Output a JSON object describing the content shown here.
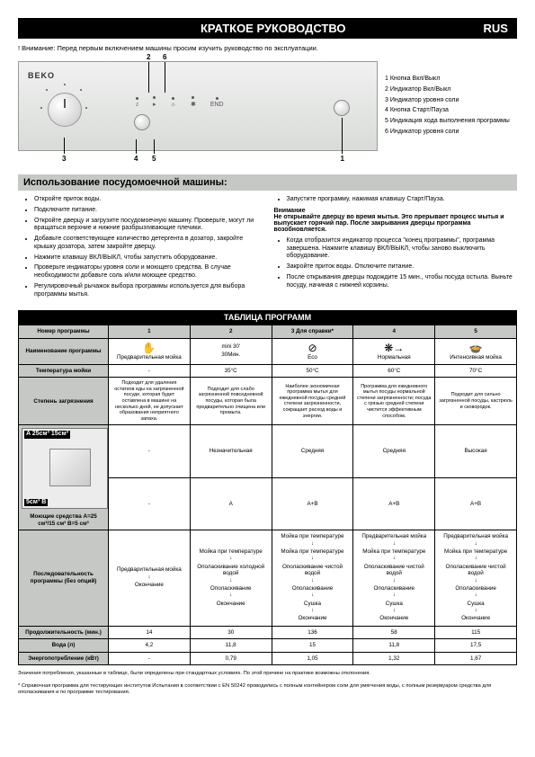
{
  "header": {
    "title": "КРАТКОЕ РУКОВОДСТВО",
    "lang": "RUS"
  },
  "warning": "! Внимание: Перед первым включением машины просим изучить руководство по эксплуатации.",
  "panel": {
    "logo": "BEKO",
    "callouts": [
      "2",
      "6",
      "3",
      "4",
      "5",
      "1"
    ],
    "legend": [
      "1  Кнопка Вкл/Выкл",
      "2  Индикатор Вкл/Выкл",
      "3  Индикатор уровня соли",
      "4  Кнопка Старт/Пауза",
      "5  Индикация хода выполнения программы",
      "6  Индикатор уровня соли"
    ]
  },
  "usage": {
    "title": "Использование посудомоечной машины:",
    "left": [
      "Откройте приток воды.",
      "Подключите питание.",
      "Откройте дверцу и загрузите посудомоечную машину. Проверьте, могут ли вращаться верхние и нижние разбрызгивающие плечики.",
      "Добавьте соответствующее количество детергента в дозатор, закройте крышку дозатора, затем закройте дверцу.",
      "Нажмите клавишу ВКЛ/ВЫКЛ, чтобы запустить оборудование.",
      "Проверьте индикаторы уровня соли и моющего средства. В случае необходимости добавьте соль и/или моющее средство.",
      "Регулировочный рычажок выбора программы используется для выбора программы мытья."
    ],
    "right_intro": "Запустите программу, нажимая клавишу Старт/Пауза.",
    "right_bold_title": "Внимание",
    "right_bold": "Не открывайте дверцу во время мытья. Это прерывает процесс мытья и выпускает горячий пар. После закрывания дверцы программа возобновляется.",
    "right_rest": [
      "Когда отобразится индикатор процесса \"конец программы\", программа завершена. Нажмите клавишу ВКЛ/ВЫКЛ, чтобы заново выключить оборудование.",
      "Закройте приток воды. Отключите питание.",
      "После открывания дверцы подождите 15 мин., чтобы посуда остыла. Выньте посуду, начиная с нижней корзины."
    ]
  },
  "table": {
    "title": "ТАБЛИЦА ПРОГРАММ",
    "headers": {
      "prog_num": "Номер программы",
      "c1": "1",
      "c2": "2",
      "c3": "3 Для справки*",
      "c4": "4",
      "c5": "5"
    },
    "name_row": {
      "label": "Наименование программы",
      "c1": "Предварительная мойка",
      "c2": "30Мин.",
      "c3": "Eco",
      "c4": "Нормальная",
      "c5": "Интенсивная мойка",
      "c2_top": "mini 30'"
    },
    "temp_row": {
      "label": "Температура мойки",
      "c1": "-",
      "c2": "35°C",
      "c3": "50°C",
      "c4": "60°C",
      "c5": "70°C"
    },
    "soil_row": {
      "label": "Степень загрязнения",
      "c1": "Подходит для удаления остатков еды на загрязненной посуде, которая будет оставлена в машине на несколько дней, не допускает образования неприятного запаха.",
      "c2": "Подходит для слабо загрязненной повседневной посуды, которая была предварительно очищена или промыта.",
      "c3": "Наиболее экономичная программа мытья для ежедневной посуды средней степени загрязненности, сокращает расход воды и энергии.",
      "c4": "Программа для ежедневного мытья посуды нормальной степени загрязненности; посуда с грязью средней степени чистится эффективным способом.",
      "c5": "Подходит для сильно загрязненной посуды, кастрюль и сковородок."
    },
    "det_row": {
      "label": "Моющие средства A=25 см³/15 см³ B=5 см³",
      "box_A": "A  25см³  15см³",
      "box_B": "5см³  B",
      "c1": "-",
      "c2": "Незначительная",
      "c3": "Средняя",
      "c4": "Средняя",
      "c5": "Высокая"
    },
    "det_row2": {
      "c1": "-",
      "c2": "A",
      "c3": "A+B",
      "c4": "A+B",
      "c5": "A+B"
    },
    "seq_row": {
      "label": "Последовательность программы (без опций)",
      "c1": [
        "Предварительная мойка",
        "Окончание"
      ],
      "c2": [
        "Мойка при температуре",
        "Ополаскивание холодной водой",
        "Ополаскивание",
        "Окончание"
      ],
      "c3": [
        "Мойка при температуре",
        "Мойка при температуре",
        "Ополаскивание чистой водой",
        "Ополаскивание",
        "Сушка",
        "Окончание"
      ],
      "c4": [
        "Предварительная мойка",
        "Мойка при температуре",
        "Ополаскивание чистой водой",
        "Ополаскивание",
        "Сушка",
        "Окончание"
      ],
      "c5": [
        "Предварительная мойка",
        "Мойка при температуре",
        "Ополаскивание чистой водой",
        "Ополаскивание",
        "Сушка",
        "Окончание"
      ]
    },
    "dur_row": {
      "label": "Продолжительность (мин.)",
      "c1": "14",
      "c2": "30",
      "c3": "136",
      "c4": "58",
      "c5": "115"
    },
    "water_row": {
      "label": "Вода (л)",
      "c1": "4,2",
      "c2": "11,8",
      "c3": "15",
      "c4": "11,8",
      "c5": "17,5"
    },
    "energy_row": {
      "label": "Энергопотребление (кВт)",
      "c1": "-",
      "c2": "0,79",
      "c3": "1,05",
      "c4": "1,32",
      "c5": "1,67"
    }
  },
  "footnotes": [
    "Значения потребления, указанные в таблице, были определены при стандартных условиях. По этой причине на практике возможны отклонения.",
    "* Справочная программа для тестирующих институтов Испытания в соответствии с EN 50242 проводились с полным контейнером соли для умягчения воды, с полным резервуаром средства для ополаскивания и по программе тестирования."
  ],
  "colors": {
    "header_bg": "#000000",
    "section_bg": "#c6c8c6",
    "panel_bg": "#e2e3e1"
  }
}
